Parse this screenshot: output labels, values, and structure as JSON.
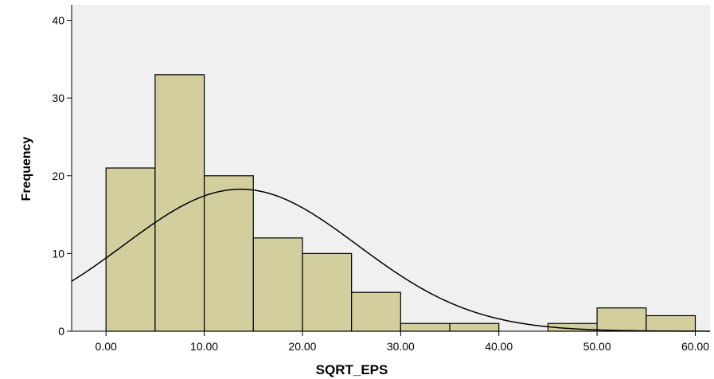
{
  "chart_data": {
    "type": "bar",
    "subtype": "histogram",
    "xlabel": "SQRT_EPS",
    "ylabel": "Frequency",
    "xlim": [
      -3.5,
      61.5
    ],
    "ylim": [
      0,
      42
    ],
    "x_ticks": [
      0,
      10,
      20,
      30,
      40,
      50,
      60
    ],
    "x_tick_labels": [
      "0.00",
      "10.00",
      "20.00",
      "30.00",
      "40.00",
      "50.00",
      "60.00"
    ],
    "y_ticks": [
      0,
      10,
      20,
      30,
      40
    ],
    "y_tick_labels": [
      "0",
      "10",
      "20",
      "30",
      "40"
    ],
    "bin_edges": [
      0,
      5,
      10,
      15,
      20,
      25,
      30,
      35,
      40,
      45,
      50,
      55,
      60
    ],
    "values": [
      21,
      33,
      20,
      12,
      10,
      5,
      1,
      1,
      0,
      1,
      3,
      2
    ],
    "normal_curve": {
      "mean": 13.7,
      "std_dev": 11.9,
      "n": 109,
      "bin_width": 5
    },
    "grid": false,
    "colors": {
      "bar_fill": "#d3ce9e",
      "bar_stroke": "#000000",
      "plot_background": "#f0f0f0",
      "curve": "#000000"
    }
  }
}
